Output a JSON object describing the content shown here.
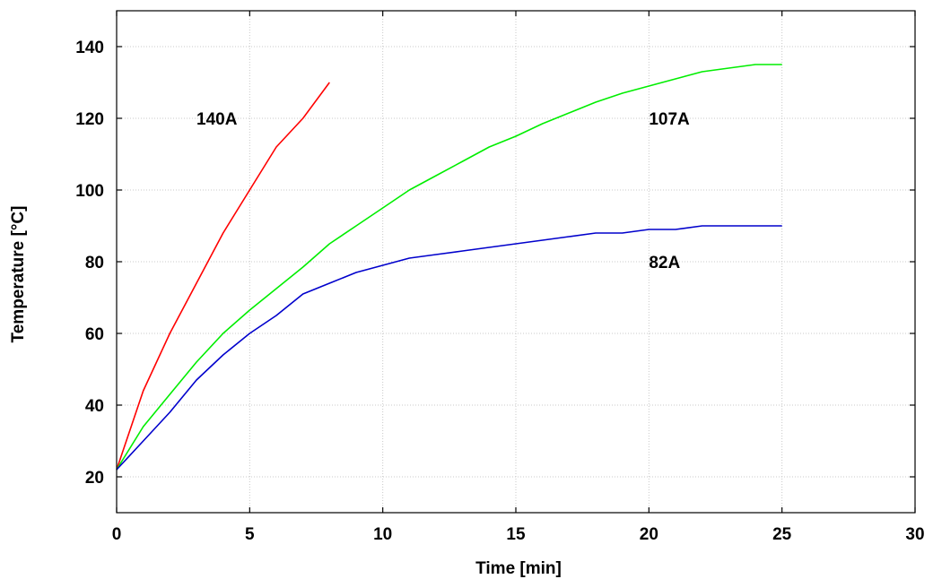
{
  "chart_data": {
    "type": "line",
    "title": "",
    "xlabel": "Time [min]",
    "ylabel": "Temperature [°C]",
    "xlim": [
      0,
      30
    ],
    "ylim": [
      10,
      150
    ],
    "xticks": [
      0,
      5,
      10,
      15,
      20,
      25,
      30
    ],
    "yticks": [
      20,
      40,
      60,
      80,
      100,
      120,
      140
    ],
    "grid": true,
    "series": [
      {
        "name": "140A",
        "color": "#ff0000",
        "x": [
          0,
          1,
          2,
          3,
          4,
          5,
          6,
          7,
          8
        ],
        "y": [
          22,
          44,
          60,
          74,
          88,
          100,
          112,
          120,
          130
        ],
        "label_at": [
          3,
          120
        ]
      },
      {
        "name": "107A",
        "color": "#00ee00",
        "x": [
          0,
          1,
          2,
          3,
          4,
          5,
          6,
          7,
          8,
          9,
          10,
          11,
          12,
          13,
          14,
          15,
          16,
          17,
          18,
          19,
          20,
          21,
          22,
          23,
          24,
          25
        ],
        "y": [
          22,
          34,
          43,
          52,
          60,
          66.5,
          72.5,
          78.5,
          85,
          90,
          95,
          100,
          104,
          108,
          112,
          115,
          118.5,
          121.5,
          124.5,
          127,
          129,
          131,
          133,
          134,
          135,
          135
        ],
        "label_at": [
          20,
          120
        ]
      },
      {
        "name": "82A",
        "color": "#0000cc",
        "x": [
          0,
          1,
          2,
          3,
          4,
          5,
          6,
          7,
          8,
          9,
          10,
          11,
          12,
          13,
          14,
          15,
          16,
          17,
          18,
          19,
          20,
          21,
          22,
          23,
          24,
          25
        ],
        "y": [
          22,
          30,
          38,
          47,
          54,
          60,
          65,
          71,
          74,
          77,
          79,
          81,
          82,
          83,
          84,
          85,
          86,
          87,
          88,
          88,
          89,
          89,
          90,
          90,
          90,
          90
        ],
        "label_at": [
          20,
          80
        ]
      }
    ]
  }
}
